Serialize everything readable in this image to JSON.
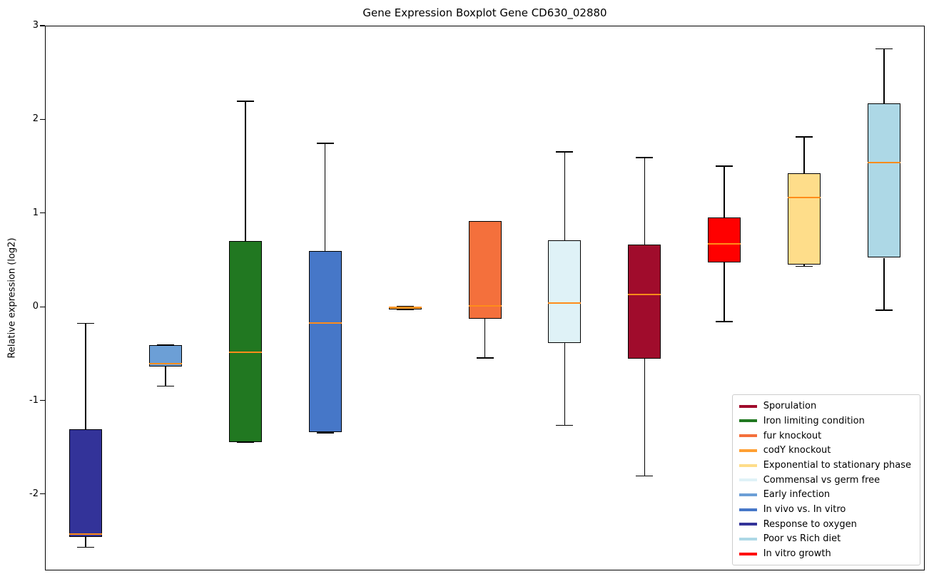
{
  "chart_data": {
    "type": "boxplot",
    "title": "Gene Expression Boxplot Gene CD630_02880",
    "ylabel": "Relative expression (log2)",
    "ylim": [
      -2.8,
      3.0
    ],
    "yticks": [
      3,
      2,
      1,
      0,
      -1,
      -2
    ],
    "grid": false,
    "median_color": "#ff8c1a",
    "box_edge_color": "#000000",
    "series": [
      {
        "label": "Response to oxygen",
        "color": "#333399",
        "whisker_low": -2.56,
        "q1": -2.45,
        "median": -2.42,
        "q3": -1.3,
        "whisker_high": -0.17
      },
      {
        "label": "Early infection",
        "color": "#6c9fd6",
        "whisker_low": -0.84,
        "q1": -0.63,
        "median": -0.6,
        "q3": -0.4,
        "whisker_high": -0.4
      },
      {
        "label": "Iron limiting condition",
        "color": "#217821",
        "whisker_low": -1.44,
        "q1": -1.44,
        "median": -0.48,
        "q3": 0.71,
        "whisker_high": 2.2
      },
      {
        "label": "In vivo vs. In vitro",
        "color": "#4677c8",
        "whisker_low": -1.34,
        "q1": -1.33,
        "median": -0.17,
        "q3": 0.6,
        "whisker_high": 1.75
      },
      {
        "label": "codY knockout",
        "color": "#ffa033",
        "whisker_low": -0.02,
        "q1": -0.02,
        "median": 0.0,
        "q3": 0.01,
        "whisker_high": 0.01
      },
      {
        "label": "fur knockout",
        "color": "#f4703c",
        "whisker_low": -0.54,
        "q1": -0.12,
        "median": 0.02,
        "q3": 0.92,
        "whisker_high": 0.92
      },
      {
        "label": "Commensal vs germ free",
        "color": "#dff2f7",
        "whisker_low": -1.26,
        "q1": -0.38,
        "median": 0.05,
        "q3": 0.72,
        "whisker_high": 1.66
      },
      {
        "label": "Sporulation",
        "color": "#a00c2c",
        "whisker_low": -1.8,
        "q1": -0.55,
        "median": 0.14,
        "q3": 0.67,
        "whisker_high": 1.6
      },
      {
        "label": "In vitro growth",
        "color": "#ff0000",
        "whisker_low": -0.15,
        "q1": 0.48,
        "median": 0.68,
        "q3": 0.96,
        "whisker_high": 1.51
      },
      {
        "label": "Exponential to stationary phase",
        "color": "#fedd8a",
        "whisker_low": 0.44,
        "q1": 0.46,
        "median": 1.17,
        "q3": 1.43,
        "whisker_high": 1.82
      },
      {
        "label": "Poor vs Rich diet",
        "color": "#add8e6",
        "whisker_low": -0.03,
        "q1": 0.53,
        "median": 1.55,
        "q3": 2.18,
        "whisker_high": 2.76
      }
    ],
    "legend": {
      "position": "lower right",
      "entries": [
        {
          "label": "Sporulation",
          "color": "#a00c2c"
        },
        {
          "label": "Iron limiting condition",
          "color": "#217821"
        },
        {
          "label": "fur knockout",
          "color": "#f4703c"
        },
        {
          "label": "codY knockout",
          "color": "#ffa033"
        },
        {
          "label": "Exponential to stationary phase",
          "color": "#fedd8a"
        },
        {
          "label": "Commensal vs germ free",
          "color": "#dff2f7"
        },
        {
          "label": "Early infection",
          "color": "#6c9fd6"
        },
        {
          "label": "In vivo vs. In vitro",
          "color": "#4677c8"
        },
        {
          "label": "Response to oxygen",
          "color": "#333399"
        },
        {
          "label": "Poor vs Rich diet",
          "color": "#add8e6"
        },
        {
          "label": "In vitro growth",
          "color": "#ff0000"
        }
      ]
    }
  }
}
